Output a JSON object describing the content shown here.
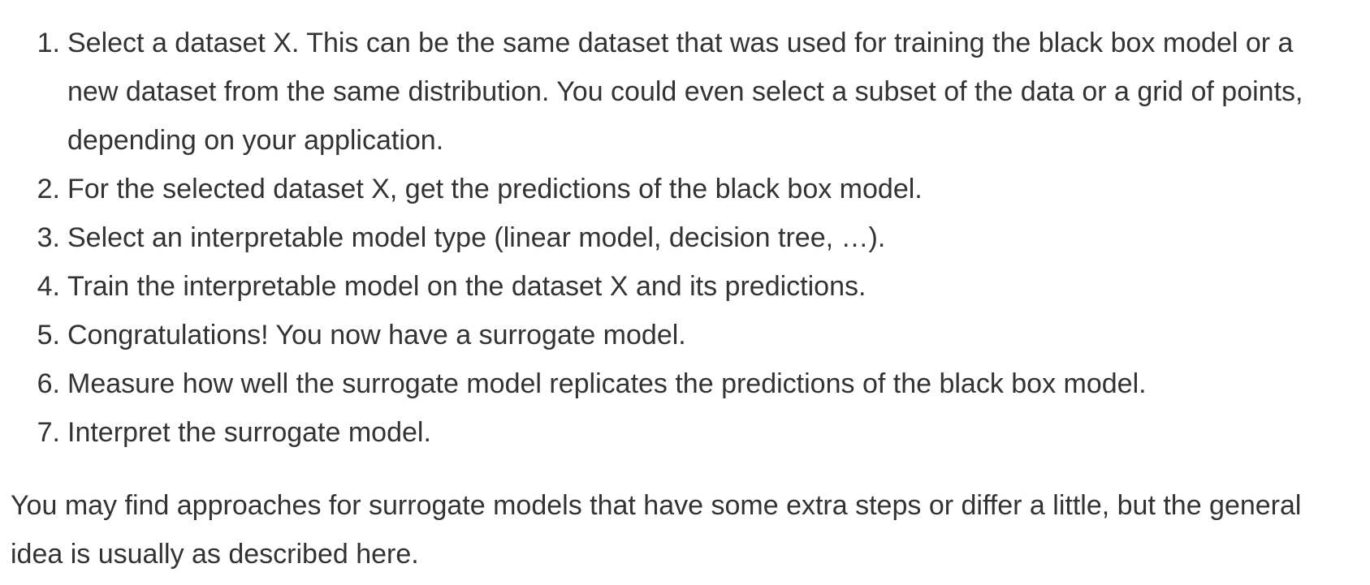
{
  "steps": [
    {
      "num": "1.",
      "text": "Select a dataset X. This can be the same dataset that was used for training the black box model or a new dataset from the same distribution. You could even select a subset of the data or a grid of points, depending on your application."
    },
    {
      "num": "2.",
      "text": "For the selected dataset X, get the predictions of the black box model."
    },
    {
      "num": "3.",
      "text": "Select an interpretable model type (linear model, decision tree, …)."
    },
    {
      "num": "4.",
      "text": "Train the interpretable model on the dataset X and its predictions."
    },
    {
      "num": "5.",
      "text": "Congratulations! You now have a surrogate model."
    },
    {
      "num": "6.",
      "text": "Measure how well the surrogate model replicates the predictions of the black box model."
    },
    {
      "num": "7.",
      "text": "Interpret the surrogate model."
    }
  ],
  "paragraph": "You may find approaches for surrogate models that have some extra steps or differ a little, but the general idea is usually as described here."
}
